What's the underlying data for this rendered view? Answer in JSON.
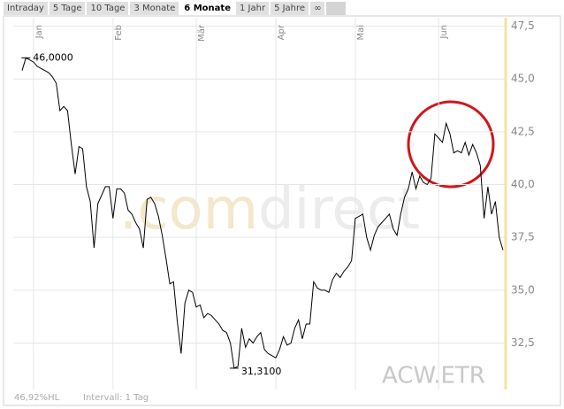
{
  "tabs": [
    "Intraday",
    "5 Tage",
    "10 Tage",
    "3 Monate",
    "6 Monate",
    "1 Jahr",
    "5 Jahre",
    "∞"
  ],
  "selected_tab": "6 Monate",
  "footer": {
    "range": "46,92%HL",
    "interval": "Intervall: 1 Tag"
  },
  "chart_data": {
    "type": "line",
    "watermark": {
      "prefix": ".com",
      "suffix": "direct"
    },
    "symbol": "ACW.ETR",
    "color": "#000000",
    "grid": true,
    "high": {
      "value": 46,
      "label": "46,0000"
    },
    "low": {
      "value": 31.31,
      "label": "31,3100"
    },
    "ylim": [
      30.3,
      47.9
    ],
    "yticks": [
      {
        "value": 32.5,
        "label": "32,5"
      },
      {
        "value": 35,
        "label": "35,0"
      },
      {
        "value": 37.5,
        "label": "37,5"
      },
      {
        "value": 40,
        "label": "40,0"
      },
      {
        "value": 42.5,
        "label": "42,5"
      },
      {
        "value": 45,
        "label": "45,0"
      },
      {
        "value": 47.5,
        "label": "47,5"
      }
    ],
    "categories": [
      null,
      null,
      null,
      "Jan",
      null,
      null,
      null,
      null,
      null,
      null,
      null,
      null,
      null,
      null,
      null,
      null,
      null,
      null,
      null,
      null,
      null,
      null,
      null,
      null,
      "Feb",
      null,
      null,
      null,
      null,
      null,
      null,
      null,
      null,
      null,
      null,
      null,
      null,
      null,
      null,
      null,
      null,
      null,
      null,
      null,
      null,
      null,
      "Mär",
      null,
      null,
      null,
      null,
      null,
      null,
      null,
      null,
      null,
      null,
      null,
      null,
      null,
      null,
      null,
      null,
      null,
      null,
      null,
      null,
      "Apr",
      null,
      null,
      null,
      null,
      null,
      null,
      null,
      null,
      null,
      null,
      null,
      null,
      null,
      null,
      null,
      null,
      null,
      null,
      null,
      null,
      "Mai",
      null,
      null,
      null,
      null,
      null,
      null,
      null,
      null,
      null,
      null,
      null,
      null,
      null,
      null,
      null,
      null,
      null,
      null,
      null,
      null,
      null,
      "Jun",
      null,
      null,
      null,
      null,
      null,
      null,
      null,
      null,
      null,
      null,
      null,
      null,
      null,
      null,
      null,
      null,
      null
    ],
    "values": [
      45.4,
      46,
      45.9,
      45.8,
      45.6,
      45.5,
      45.4,
      45.3,
      45.1,
      44.8,
      43.5,
      43.7,
      43.5,
      41.9,
      40.5,
      41.8,
      41.7,
      39.9,
      39.2,
      37,
      39.1,
      39.5,
      39.9,
      39.9,
      38.4,
      39.8,
      39.8,
      39.6,
      38.8,
      38.6,
      38.2,
      37.9,
      37,
      39.3,
      39.4,
      39.1,
      38.5,
      37.6,
      36.5,
      35.3,
      35.4,
      33.5,
      32,
      34.4,
      35,
      34.9,
      34.2,
      34.3,
      33.7,
      33.9,
      33.8,
      33.6,
      33.4,
      33.1,
      33,
      32.5,
      31.31,
      31.4,
      33.2,
      32.3,
      32.7,
      32.5,
      32.8,
      33,
      32.2,
      32,
      31.9,
      31.8,
      32.2,
      32.8,
      32.4,
      32.5,
      33.2,
      33.6,
      32.7,
      33.4,
      33.4,
      35.4,
      35.1,
      35,
      35,
      34.9,
      35.5,
      35.8,
      35.6,
      35.9,
      36.1,
      36.4,
      38.4,
      38.5,
      38.6,
      37.5,
      36.9,
      37.6,
      38,
      38.2,
      38.4,
      38.6,
      37.9,
      37.6,
      38.6,
      39.4,
      39.8,
      40.6,
      39.8,
      40.4,
      40.1,
      40,
      40.3,
      42.4,
      42.2,
      42,
      42.9,
      42.4,
      41.5,
      41.6,
      41.5,
      42,
      41.4,
      41.9,
      41.5,
      40.9,
      38.4,
      39.9,
      38.6,
      39.2,
      37.5,
      36.9
    ]
  }
}
